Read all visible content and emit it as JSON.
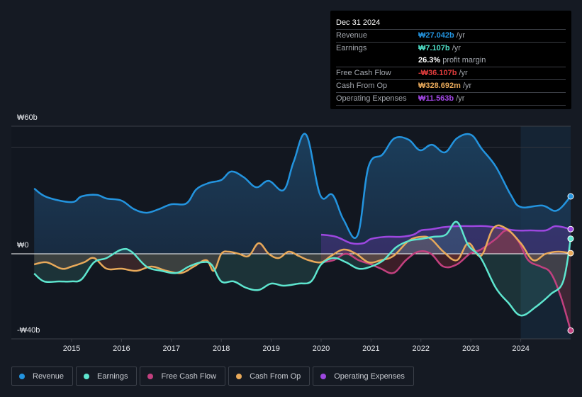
{
  "tooltip": {
    "date": "Dec 31 2024",
    "rows": [
      {
        "label": "Revenue",
        "value": "₩27.042b",
        "suffix": " /yr",
        "color": "#2394df"
      },
      {
        "label": "Earnings",
        "value": "₩7.107b",
        "suffix": " /yr",
        "color": "#4fe0c8"
      },
      {
        "label": "",
        "value": "26.3%",
        "suffix": " profit margin",
        "color": "#ffffff"
      },
      {
        "label": "Free Cash Flow",
        "value": "-₩36.107b",
        "suffix": " /yr",
        "color": "#e03c3c"
      },
      {
        "label": "Cash From Op",
        "value": "₩328.692m",
        "suffix": " /yr",
        "color": "#e8a95a"
      },
      {
        "label": "Operating Expenses",
        "value": "₩11.563b",
        "suffix": " /yr",
        "color": "#a448e8"
      }
    ]
  },
  "legend": [
    {
      "label": "Revenue",
      "color": "#2394df"
    },
    {
      "label": "Earnings",
      "color": "#5ee6cf"
    },
    {
      "label": "Free Cash Flow",
      "color": "#c2407f"
    },
    {
      "label": "Cash From Op",
      "color": "#e8a95a"
    },
    {
      "label": "Operating Expenses",
      "color": "#9d47e0"
    }
  ],
  "chart_data": {
    "type": "line",
    "title": "",
    "xlabel": "",
    "ylabel": "",
    "ylim": [
      -40,
      60
    ],
    "xlim": [
      2014.25,
      2025.0
    ],
    "ytick_labels": [
      {
        "value": 60,
        "label": "₩60b"
      },
      {
        "value": 0,
        "label": "₩0"
      },
      {
        "value": -40,
        "label": "-₩40b"
      }
    ],
    "xtick_labels": [
      "2015",
      "2016",
      "2017",
      "2018",
      "2019",
      "2020",
      "2021",
      "2022",
      "2023",
      "2024"
    ],
    "xticks": [
      2015,
      2016,
      2017,
      2018,
      2019,
      2020,
      2021,
      2022,
      2023,
      2024
    ],
    "highlight_start": 2024.0,
    "units": "KRW billions",
    "series": [
      {
        "name": "Revenue",
        "color": "#2394df",
        "fill": true,
        "x": [
          2014.25,
          2014.5,
          2015.0,
          2015.2,
          2015.5,
          2015.7,
          2016.0,
          2016.25,
          2016.5,
          2016.75,
          2017.0,
          2017.3,
          2017.5,
          2017.75,
          2018.0,
          2018.2,
          2018.45,
          2018.7,
          2018.95,
          2019.25,
          2019.45,
          2019.7,
          2019.98,
          2020.23,
          2020.45,
          2020.73,
          2020.95,
          2021.23,
          2021.47,
          2021.75,
          2021.98,
          2022.22,
          2022.48,
          2022.72,
          2023.0,
          2023.22,
          2023.5,
          2023.8,
          2024.0,
          2024.43,
          2024.72,
          2025.0
        ],
        "values": [
          30.7,
          26.7,
          24.3,
          27.0,
          27.7,
          26.0,
          25.0,
          21.0,
          19.3,
          21.0,
          23.3,
          23.7,
          30.3,
          33.3,
          34.7,
          38.7,
          36.0,
          31.3,
          34.3,
          30.0,
          43.3,
          56.0,
          27.7,
          27.7,
          16.0,
          8.7,
          41.0,
          46.7,
          54.3,
          53.7,
          48.7,
          51.3,
          47.7,
          54.3,
          56.0,
          49.3,
          41.0,
          27.7,
          22.0,
          22.7,
          20.3,
          27.0
        ]
      },
      {
        "name": "Earnings",
        "color": "#5ee6cf",
        "fill": true,
        "x": [
          2014.25,
          2014.45,
          2014.75,
          2015.0,
          2015.2,
          2015.45,
          2015.7,
          2016.0,
          2016.2,
          2016.5,
          2016.8,
          2017.1,
          2017.35,
          2017.6,
          2017.8,
          2018.0,
          2018.25,
          2018.5,
          2018.75,
          2019.0,
          2019.25,
          2019.55,
          2019.8,
          2020.0,
          2020.25,
          2020.5,
          2020.75,
          2021.0,
          2021.25,
          2021.5,
          2021.75,
          2022.0,
          2022.25,
          2022.5,
          2022.72,
          2022.95,
          2023.2,
          2023.5,
          2023.75,
          2024.0,
          2024.3,
          2024.6,
          2024.85,
          2025.0
        ],
        "values": [
          -9.3,
          -13,
          -13,
          -13,
          -12,
          -4,
          -2,
          2,
          1,
          -6,
          -8,
          -9,
          -6,
          -4,
          -5,
          -13,
          -13,
          -16,
          -17,
          -14,
          -15,
          -14,
          -13,
          -5,
          -2,
          -4,
          -7,
          -6,
          -3,
          3,
          6,
          7,
          8,
          9,
          15,
          4,
          -2,
          -16,
          -23,
          -29,
          -25,
          -19,
          -13,
          7.1
        ]
      },
      {
        "name": "Free Cash Flow",
        "color": "#c2407f",
        "fill": true,
        "x": [
          2020.0,
          2020.25,
          2020.5,
          2020.75,
          2021.0,
          2021.2,
          2021.45,
          2021.7,
          2021.95,
          2022.2,
          2022.45,
          2022.72,
          2022.98,
          2023.2,
          2023.5,
          2023.72,
          2023.95,
          2024.15,
          2024.4,
          2024.6,
          2024.8,
          2025.0
        ],
        "values": [
          -4,
          -3,
          0,
          -3,
          -5,
          -7,
          -9,
          -3,
          1,
          0,
          -6,
          -5,
          0,
          2,
          7,
          11,
          6,
          -3,
          -6,
          -9,
          -20,
          -36.1
        ]
      },
      {
        "name": "Cash From Op",
        "color": "#e8a95a",
        "fill": true,
        "x": [
          2014.25,
          2014.5,
          2014.8,
          2015.0,
          2015.25,
          2015.45,
          2015.7,
          2016.0,
          2016.3,
          2016.6,
          2016.9,
          2017.2,
          2017.45,
          2017.7,
          2017.85,
          2018.0,
          2018.15,
          2018.35,
          2018.55,
          2018.75,
          2018.95,
          2019.15,
          2019.35,
          2019.55,
          2019.75,
          2020.0,
          2020.2,
          2020.45,
          2020.7,
          2020.95,
          2021.2,
          2021.45,
          2021.75,
          2022.0,
          2022.2,
          2022.45,
          2022.72,
          2022.95,
          2023.2,
          2023.45,
          2023.7,
          2024.0,
          2024.25,
          2024.5,
          2024.75,
          2025.0
        ],
        "values": [
          -5,
          -4,
          -7,
          -6,
          -4,
          -2,
          -7,
          -7,
          -8,
          -6,
          -8,
          -9,
          -6,
          -3,
          -8,
          0,
          1,
          0,
          -1,
          5,
          0,
          -2,
          1,
          -1,
          -3,
          -4,
          -1,
          2,
          0,
          -4,
          -3,
          -1,
          6,
          8,
          7,
          1,
          -3,
          5,
          -1,
          12,
          12,
          5,
          -3,
          0,
          1,
          0.3
        ]
      },
      {
        "name": "Operating Expenses",
        "color": "#9d47e0",
        "fill": true,
        "x": [
          2020.0,
          2020.3,
          2020.6,
          2020.85,
          2021.0,
          2021.3,
          2021.6,
          2021.85,
          2022.0,
          2022.2,
          2022.45,
          2022.72,
          2023.0,
          2023.3,
          2023.6,
          2023.9,
          2024.2,
          2024.5,
          2024.7,
          2025.0
        ],
        "values": [
          9,
          8,
          5,
          5,
          7,
          8,
          8,
          9,
          11,
          11.5,
          12.5,
          13,
          13,
          13,
          12,
          11,
          11,
          11,
          13,
          11.6
        ]
      }
    ]
  }
}
